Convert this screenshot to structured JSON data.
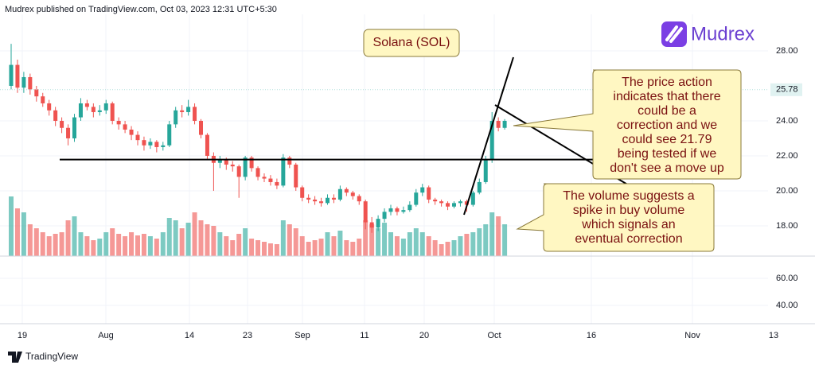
{
  "header": "Mudrex published on TradingView.com, Oct 03, 2023 12:31 UTC+5:30",
  "brand": "Mudrex",
  "footer": "TradingView",
  "chart_data": {
    "type": "candlestick",
    "title": "Solana (SOL)",
    "candles": [
      [
        26.0,
        28.4,
        25.8,
        27.2
      ],
      [
        27.2,
        27.5,
        25.6,
        25.9
      ],
      [
        25.9,
        26.8,
        25.6,
        26.5
      ],
      [
        26.5,
        26.7,
        25.5,
        25.8
      ],
      [
        25.8,
        26.0,
        25.1,
        25.4
      ],
      [
        25.4,
        25.6,
        24.8,
        25.0
      ],
      [
        25.0,
        25.2,
        24.3,
        24.6
      ],
      [
        24.6,
        24.8,
        23.7,
        24.0
      ],
      [
        24.0,
        24.2,
        23.3,
        23.6
      ],
      [
        23.6,
        23.8,
        22.6,
        23.0
      ],
      [
        23.0,
        24.4,
        22.8,
        24.2
      ],
      [
        24.2,
        25.3,
        24.0,
        25.0
      ],
      [
        25.0,
        25.2,
        24.6,
        24.8
      ],
      [
        24.8,
        25.0,
        24.2,
        24.5
      ],
      [
        24.5,
        24.9,
        24.3,
        24.6
      ],
      [
        24.6,
        25.2,
        24.4,
        25.0
      ],
      [
        25.0,
        25.1,
        23.8,
        24.0
      ],
      [
        24.0,
        24.2,
        23.5,
        23.8
      ],
      [
        23.8,
        24.0,
        23.3,
        23.5
      ],
      [
        23.5,
        23.7,
        22.9,
        23.2
      ],
      [
        23.2,
        23.4,
        22.6,
        22.9
      ],
      [
        22.9,
        23.1,
        22.3,
        22.6
      ],
      [
        22.6,
        23.0,
        22.4,
        22.8
      ],
      [
        22.8,
        22.9,
        22.2,
        22.5
      ],
      [
        22.5,
        22.8,
        22.3,
        22.6
      ],
      [
        22.6,
        24.0,
        22.5,
        23.8
      ],
      [
        23.8,
        24.8,
        23.6,
        24.6
      ],
      [
        24.6,
        24.9,
        24.2,
        24.5
      ],
      [
        24.5,
        25.2,
        24.3,
        24.8
      ],
      [
        24.8,
        25.0,
        23.8,
        24.0
      ],
      [
        24.0,
        24.1,
        23.0,
        23.2
      ],
      [
        23.2,
        23.3,
        21.8,
        22.0
      ],
      [
        22.0,
        22.2,
        20.0,
        21.6
      ],
      [
        21.6,
        22.0,
        21.3,
        21.8
      ],
      [
        21.8,
        21.9,
        21.2,
        21.5
      ],
      [
        21.5,
        21.7,
        21.1,
        21.4
      ],
      [
        21.4,
        21.5,
        19.6,
        20.8
      ],
      [
        20.8,
        22.0,
        20.6,
        21.9
      ],
      [
        21.9,
        22.0,
        21.1,
        21.3
      ],
      [
        21.3,
        21.4,
        20.6,
        20.8
      ],
      [
        20.8,
        21.0,
        20.5,
        20.7
      ],
      [
        20.7,
        20.9,
        20.3,
        20.5
      ],
      [
        20.5,
        20.7,
        20.1,
        20.3
      ],
      [
        20.3,
        22.1,
        20.2,
        21.9
      ],
      [
        21.9,
        22.0,
        21.3,
        21.5
      ],
      [
        21.5,
        21.6,
        20.0,
        20.2
      ],
      [
        20.2,
        20.3,
        19.4,
        19.6
      ],
      [
        19.6,
        19.8,
        19.3,
        19.5
      ],
      [
        19.5,
        19.7,
        19.2,
        19.4
      ],
      [
        19.4,
        19.6,
        19.1,
        19.3
      ],
      [
        19.3,
        19.8,
        19.2,
        19.6
      ],
      [
        19.6,
        19.8,
        19.3,
        19.5
      ],
      [
        19.5,
        20.3,
        19.4,
        20.1
      ],
      [
        20.1,
        20.2,
        19.7,
        19.9
      ],
      [
        19.9,
        20.0,
        19.5,
        19.7
      ],
      [
        19.7,
        19.8,
        19.2,
        19.4
      ],
      [
        19.4,
        19.5,
        17.8,
        18.2
      ],
      [
        18.2,
        18.5,
        17.6,
        17.9
      ],
      [
        17.9,
        18.6,
        17.7,
        18.4
      ],
      [
        18.4,
        19.0,
        18.2,
        18.8
      ],
      [
        18.8,
        19.2,
        18.6,
        19.0
      ],
      [
        19.0,
        19.1,
        18.6,
        18.8
      ],
      [
        18.8,
        19.1,
        18.7,
        18.9
      ],
      [
        18.9,
        19.4,
        18.8,
        19.2
      ],
      [
        19.2,
        20.1,
        19.1,
        19.9
      ],
      [
        19.9,
        20.4,
        19.7,
        20.2
      ],
      [
        20.2,
        20.3,
        19.3,
        19.5
      ],
      [
        19.5,
        19.6,
        19.2,
        19.4
      ],
      [
        19.4,
        19.5,
        19.1,
        19.3
      ],
      [
        19.3,
        19.4,
        18.9,
        19.1
      ],
      [
        19.1,
        19.4,
        19.0,
        19.3
      ],
      [
        19.3,
        19.5,
        19.1,
        19.4
      ],
      [
        19.4,
        19.5,
        18.8,
        19.2
      ],
      [
        19.2,
        20.0,
        19.1,
        19.9
      ],
      [
        19.9,
        20.7,
        19.8,
        20.5
      ],
      [
        20.5,
        22.0,
        20.4,
        21.8
      ],
      [
        21.8,
        24.5,
        21.6,
        24.0
      ],
      [
        24.0,
        24.2,
        23.4,
        23.6
      ],
      [
        23.6,
        24.1,
        23.5,
        24.0
      ]
    ],
    "volumes": [
      75,
      60,
      55,
      40,
      35,
      30,
      25,
      28,
      30,
      45,
      50,
      30,
      25,
      20,
      22,
      30,
      35,
      28,
      25,
      30,
      26,
      28,
      25,
      22,
      30,
      48,
      45,
      35,
      42,
      55,
      45,
      40,
      38,
      30,
      25,
      20,
      28,
      35,
      22,
      20,
      18,
      16,
      15,
      45,
      40,
      35,
      25,
      18,
      20,
      22,
      30,
      25,
      32,
      20,
      18,
      22,
      45,
      40,
      35,
      42,
      30,
      25,
      22,
      30,
      35,
      30,
      25,
      20,
      15,
      18,
      20,
      25,
      28,
      30,
      35,
      40,
      55,
      50,
      40
    ],
    "up_color": "#26a69a",
    "down_color": "#ef5350",
    "ylim": [
      16.27,
      30.09
    ],
    "yticks": [
      {
        "value": 18,
        "label": "18.00"
      },
      {
        "value": 20,
        "label": "20.00"
      },
      {
        "value": 22,
        "label": "22.00"
      },
      {
        "value": 24,
        "label": "24.00"
      },
      {
        "value": 28,
        "label": "28.00"
      }
    ],
    "price_label": 25.78,
    "support_level": 21.79,
    "grid": true,
    "xlabels": [
      "19",
      "Aug",
      "14",
      "23",
      "Sep",
      "11",
      "20",
      "Oct",
      "16",
      "Nov",
      "13"
    ],
    "lower_pane": {
      "ylim": [
        27.65,
        76.47
      ],
      "yticks": [
        {
          "value": 60,
          "label": "60.00"
        },
        {
          "value": 40,
          "label": "40.00"
        }
      ]
    },
    "annotations": [
      {
        "lines": [
          "The price action",
          "indicates that there",
          "could be a",
          "correction and we",
          "could see 21.79",
          "being tested if we",
          "don't see a move up"
        ]
      },
      {
        "lines": [
          "The volume suggests a",
          "spike in buy volume",
          "which signals an",
          "eventual correction"
        ]
      }
    ]
  }
}
